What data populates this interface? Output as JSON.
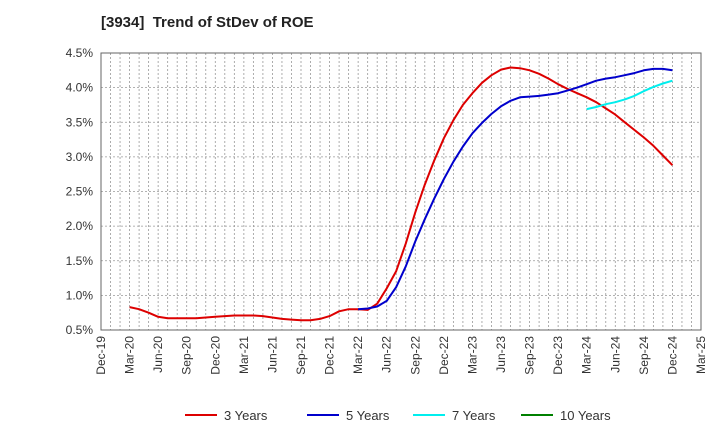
{
  "chart_data": {
    "type": "line",
    "title": "[3934]  Trend of StDev of ROE",
    "xlabel": "",
    "ylabel": "",
    "ylim": [
      0.5,
      4.5
    ],
    "y_unit": "%",
    "grid": true,
    "legend_position": "bottom",
    "x_ticks": [
      "Dec-19",
      "Mar-20",
      "Jun-20",
      "Sep-20",
      "Dec-20",
      "Mar-21",
      "Jun-21",
      "Sep-21",
      "Dec-21",
      "Mar-22",
      "Jun-22",
      "Sep-22",
      "Dec-22",
      "Mar-23",
      "Jun-23",
      "Sep-23",
      "Dec-23",
      "Mar-24",
      "Jun-24",
      "Sep-24",
      "Dec-24",
      "Mar-25"
    ],
    "y_ticks": [
      "0.5%",
      "1.0%",
      "1.5%",
      "2.0%",
      "2.5%",
      "3.0%",
      "3.5%",
      "4.0%",
      "4.5%"
    ],
    "series": [
      {
        "name": "3 Years",
        "color": "#dd0000",
        "x": [
          "Mar-20",
          "Apr-20",
          "May-20",
          "Jun-20",
          "Jul-20",
          "Aug-20",
          "Sep-20",
          "Oct-20",
          "Nov-20",
          "Dec-20",
          "Jan-21",
          "Feb-21",
          "Mar-21",
          "Apr-21",
          "May-21",
          "Jun-21",
          "Jul-21",
          "Aug-21",
          "Sep-21",
          "Oct-21",
          "Nov-21",
          "Dec-21",
          "Jan-22",
          "Feb-22",
          "Mar-22",
          "Apr-22",
          "May-22",
          "Jun-22",
          "Jul-22",
          "Aug-22",
          "Sep-22",
          "Oct-22",
          "Nov-22",
          "Dec-22",
          "Jan-23",
          "Feb-23",
          "Mar-23",
          "Apr-23",
          "May-23",
          "Jun-23",
          "Jul-23",
          "Aug-23",
          "Sep-23",
          "Oct-23",
          "Nov-23",
          "Dec-23",
          "Jan-24",
          "Feb-24",
          "Mar-24",
          "Apr-24",
          "May-24",
          "Jun-24",
          "Jul-24",
          "Aug-24",
          "Sep-24",
          "Oct-24",
          "Nov-24",
          "Dec-24"
        ],
        "values": [
          0.83,
          0.8,
          0.75,
          0.69,
          0.67,
          0.67,
          0.67,
          0.67,
          0.68,
          0.69,
          0.7,
          0.71,
          0.71,
          0.71,
          0.7,
          0.68,
          0.66,
          0.65,
          0.64,
          0.64,
          0.66,
          0.7,
          0.77,
          0.8,
          0.8,
          0.79,
          0.88,
          1.1,
          1.35,
          1.75,
          2.2,
          2.6,
          2.95,
          3.27,
          3.53,
          3.75,
          3.92,
          4.07,
          4.18,
          4.26,
          4.29,
          4.28,
          4.25,
          4.2,
          4.13,
          4.05,
          3.98,
          3.92,
          3.86,
          3.79,
          3.7,
          3.61,
          3.5,
          3.39,
          3.28,
          3.16,
          3.02,
          2.88
        ]
      },
      {
        "name": "5 Years",
        "color": "#0000cc",
        "x": [
          "Mar-22",
          "Apr-22",
          "May-22",
          "Jun-22",
          "Jul-22",
          "Aug-22",
          "Sep-22",
          "Oct-22",
          "Nov-22",
          "Dec-22",
          "Jan-23",
          "Feb-23",
          "Mar-23",
          "Apr-23",
          "May-23",
          "Jun-23",
          "Jul-23",
          "Aug-23",
          "Sep-23",
          "Oct-23",
          "Nov-23",
          "Dec-23",
          "Jan-24",
          "Feb-24",
          "Mar-24",
          "Apr-24",
          "May-24",
          "Jun-24",
          "Jul-24",
          "Aug-24",
          "Sep-24",
          "Oct-24",
          "Nov-24",
          "Dec-24"
        ],
        "values": [
          0.8,
          0.81,
          0.84,
          0.92,
          1.12,
          1.42,
          1.78,
          2.1,
          2.4,
          2.68,
          2.93,
          3.15,
          3.34,
          3.49,
          3.62,
          3.73,
          3.81,
          3.86,
          3.87,
          3.88,
          3.9,
          3.92,
          3.96,
          4.0,
          4.05,
          4.1,
          4.13,
          4.15,
          4.18,
          4.21,
          4.25,
          4.27,
          4.27,
          4.25
        ]
      },
      {
        "name": "7 Years",
        "color": "#00eeee",
        "x": [
          "Mar-24",
          "Apr-24",
          "May-24",
          "Jun-24",
          "Jul-24",
          "Aug-24",
          "Sep-24",
          "Oct-24",
          "Nov-24",
          "Dec-24"
        ],
        "values": [
          3.69,
          3.72,
          3.76,
          3.79,
          3.83,
          3.88,
          3.95,
          4.01,
          4.06,
          4.1
        ]
      },
      {
        "name": "10 Years",
        "color": "#008000",
        "x": [],
        "values": []
      }
    ]
  }
}
